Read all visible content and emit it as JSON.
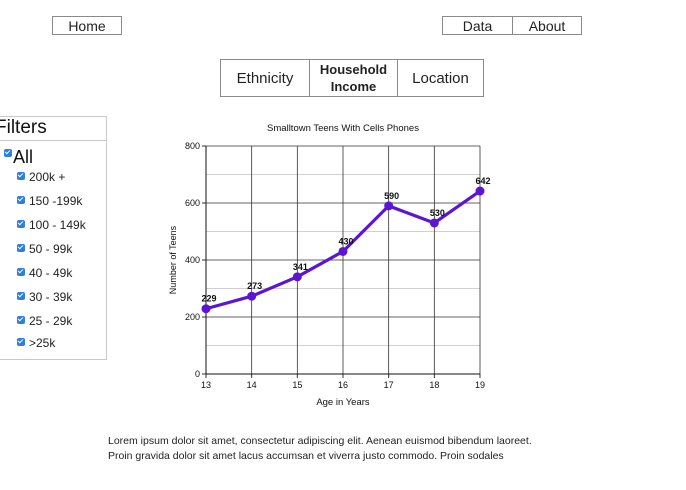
{
  "nav": {
    "home": "Home",
    "data": "Data",
    "about": "About"
  },
  "tabs": {
    "ethnicity": "Ethnicity",
    "household_line1": "Household",
    "household_line2": "Income",
    "location": "Location"
  },
  "filters": {
    "title": "Filters",
    "all": "All",
    "items": [
      "200k +",
      "150 -199k",
      "100 - 149k",
      "50 - 99k",
      "40 - 49k",
      "30 - 39k",
      "25 - 29k",
      ">25k"
    ]
  },
  "chart_data": {
    "type": "line",
    "title": "Smalltown Teens With Cells Phones",
    "xlabel": "Age in Years",
    "ylabel": "Number of Teens",
    "x": [
      13,
      14,
      15,
      16,
      17,
      18,
      19
    ],
    "values": [
      229,
      273,
      341,
      430,
      590,
      530,
      642
    ],
    "data_labels": [
      "229",
      "273",
      "341",
      "430",
      "590",
      "530",
      "642"
    ],
    "x_ticks": [
      "13",
      "14",
      "15",
      "16",
      "17",
      "18",
      "19"
    ],
    "y_ticks": [
      "0",
      "200",
      "400",
      "600",
      "800"
    ],
    "ylim": [
      0,
      800
    ],
    "xlim": [
      13,
      19
    ],
    "grid": true,
    "line_color": "#5b16d4"
  },
  "body_text": {
    "line1": "Lorem ipsum dolor sit amet, consectetur adipiscing elit. Aenean euismod bibendum laoreet.",
    "line2": "Proin gravida dolor sit amet lacus accumsan et viverra justo commodo. Proin sodales"
  }
}
